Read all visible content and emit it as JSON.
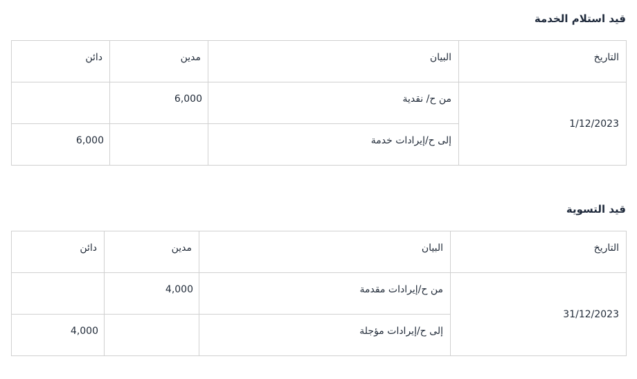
{
  "entries": [
    {
      "title": "قيد استلام الخدمة",
      "headers": {
        "date": "التاريخ",
        "description": "البيان",
        "debit": "مدين",
        "credit": "دائن"
      },
      "date": "1/12/2023",
      "rows": [
        {
          "description": "من ح/ نقدية",
          "debit": "6,000",
          "credit": ""
        },
        {
          "description": "إلى ح/إيرادات خدمة",
          "debit": "",
          "credit": "6,000"
        }
      ]
    },
    {
      "title": "قيد التسوية",
      "headers": {
        "date": "التاريخ",
        "description": "البيان",
        "debit": "مدين",
        "credit": "دائن"
      },
      "date": "31/12/2023",
      "rows": [
        {
          "description": "من ح/إيرادات مقدمة",
          "debit": "4,000",
          "credit": ""
        },
        {
          "description": "إلى ح/إيرادات مؤجلة",
          "debit": "",
          "credit": "4,000"
        }
      ]
    }
  ]
}
